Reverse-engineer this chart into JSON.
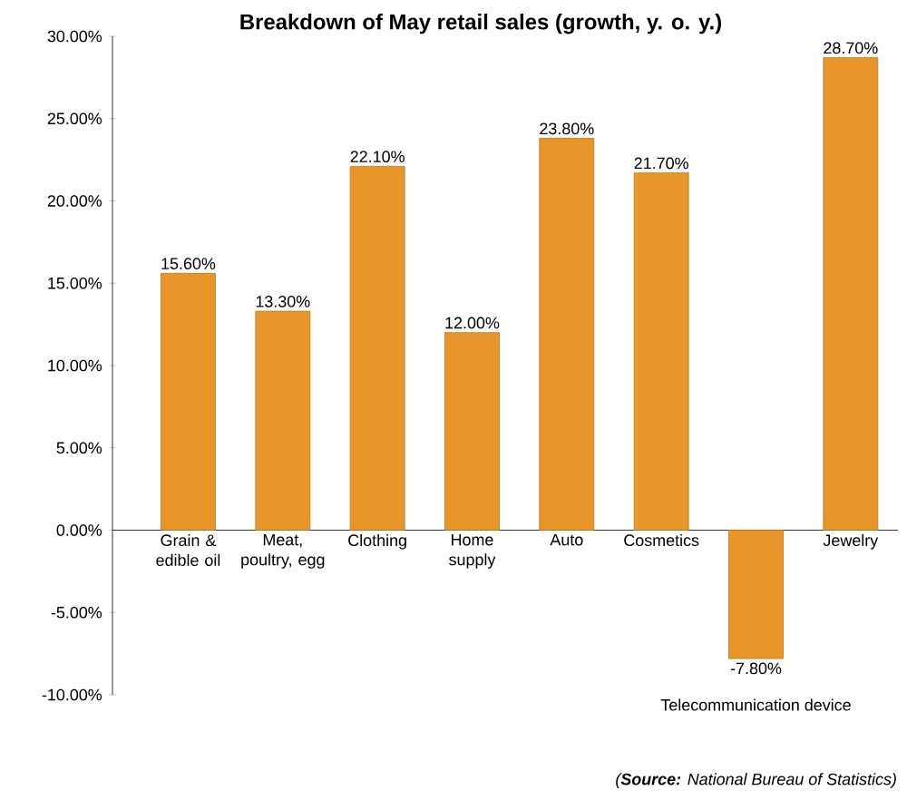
{
  "chart_data": {
    "type": "bar",
    "title": "Breakdown of May retail sales (growth, y. o. y.)",
    "categories": [
      "Grain & edible oil",
      "Meat, poultry, egg",
      "Clothing",
      "Home supply",
      "Auto",
      "Cosmetics",
      "Telecommunication device",
      "Jewelry"
    ],
    "values": [
      15.6,
      13.3,
      22.1,
      12.0,
      23.8,
      21.7,
      -7.8,
      28.7
    ],
    "value_labels": [
      "15.60%",
      "13.30%",
      "22.10%",
      "12.00%",
      "23.80%",
      "21.70%",
      "-7.80%",
      "28.70%"
    ],
    "color": "#e8962a",
    "ylim": [
      -10,
      30
    ],
    "yticks": [
      {
        "value": -10,
        "label": "-10.00%"
      },
      {
        "value": -5,
        "label": "-5.00%"
      },
      {
        "value": 0,
        "label": "0.00%"
      },
      {
        "value": 5,
        "label": "5.00%"
      },
      {
        "value": 10,
        "label": "10.00%"
      },
      {
        "value": 15,
        "label": "15.00%"
      },
      {
        "value": 20,
        "label": "20.00%"
      },
      {
        "value": 25,
        "label": "25.00%"
      },
      {
        "value": 30,
        "label": "30.00%"
      }
    ],
    "annotations": [
      "(**Source:** National Bureau of Statistics)"
    ]
  }
}
